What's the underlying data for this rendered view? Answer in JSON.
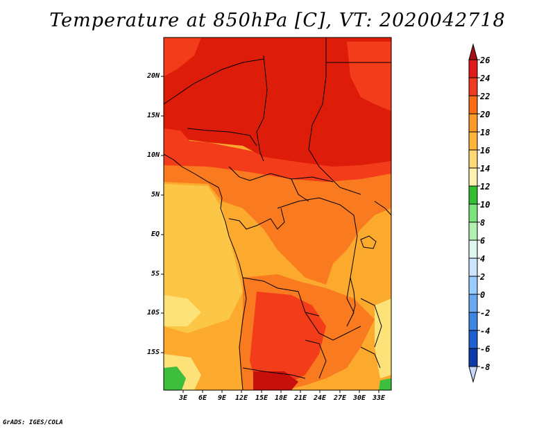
{
  "title": "Temperature at 850hPa [C], VT: 2020042718",
  "footer": "GrADS: IGES/COLA",
  "map": {
    "lat_labels": [
      "20N",
      "15N",
      "10N",
      "5N",
      "EQ",
      "5S",
      "10S",
      "15S"
    ],
    "lon_labels": [
      "3E",
      "6E",
      "9E",
      "12E",
      "15E",
      "18E",
      "21E",
      "24E",
      "27E",
      "30E",
      "33E"
    ],
    "lon_range": [
      0,
      35
    ],
    "lat_range": [
      -20,
      25
    ]
  },
  "colorbar": {
    "labels": [
      "26",
      "24",
      "22",
      "20",
      "18",
      "16",
      "14",
      "12",
      "10",
      "8",
      "6",
      "4",
      "2",
      "0",
      "-2",
      "-4",
      "-6",
      "-8"
    ],
    "colors": [
      "#a50f15",
      "#e31a1c",
      "#f03b20",
      "#f86d15",
      "#fb9a29",
      "#fdb63a",
      "#fed976",
      "#fff2ae",
      "#32bf32",
      "#7ce37c",
      "#b2f0b2",
      "#e0f7f0",
      "#cce5ff",
      "#99ccff",
      "#6aa8ef",
      "#3d85e0",
      "#1f5fd0",
      "#0d3aa8",
      "#08216b",
      "#c6d6f7"
    ]
  },
  "colors": {
    "hot": "#dd1c0a",
    "warm": "#f23c1a",
    "orange": "#f97a1f",
    "amber": "#fbaa2d",
    "light": "#fcc646",
    "pale": "#fde27a",
    "green": "#3dbe3d"
  }
}
